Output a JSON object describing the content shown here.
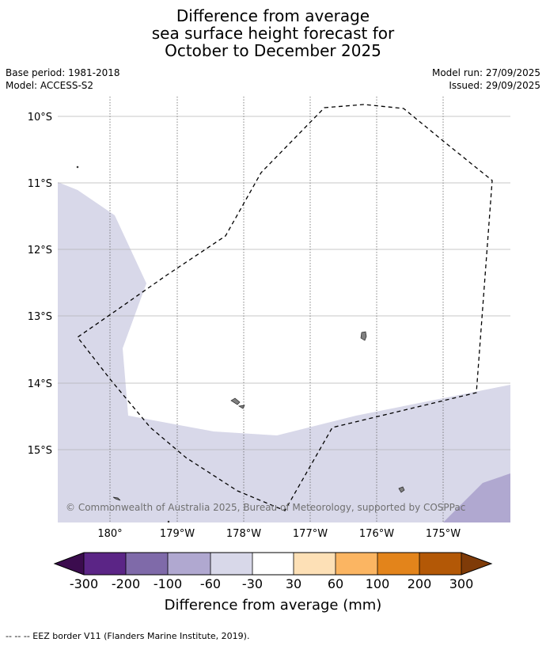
{
  "title": {
    "line1": "Difference from average",
    "line2": "sea surface height forecast for",
    "line3": "October to December 2025"
  },
  "meta": {
    "base_period": "Base period: 1981-2018",
    "model": "Model: ACCESS-S2",
    "model_run": "Model run: 27/09/2025",
    "issued": "Issued: 29/09/2025"
  },
  "map": {
    "lat_labels": [
      "10°S",
      "11°S",
      "12°S",
      "13°S",
      "14°S",
      "15°S"
    ],
    "lon_labels": [
      "180°",
      "179°W",
      "178°W",
      "177°W",
      "176°W",
      "175°W"
    ],
    "copyright": "© Commonwealth of Australia 2025, Bureau of Meteorology, supported by COSPPac"
  },
  "colorbar": {
    "title": "Difference from average (mm)",
    "tick_labels": [
      "-300",
      "-200",
      "-100",
      "-60",
      "-30",
      "30",
      "60",
      "100",
      "200",
      "300"
    ],
    "colors": {
      "below_min": "#3b0c4e",
      "c1": "#5b2586",
      "c2": "#7f6aa9",
      "c3": "#b0a8d0",
      "c4": "#d8d8e9",
      "c5": "#ffffff",
      "c6": "#fde0b6",
      "c7": "#fbb562",
      "c8": "#e3841b",
      "c9": "#b35806",
      "above_max": "#7f3b08"
    }
  },
  "footer": {
    "legend": "--  --  -- EEZ border V11 (Flanders Marine Institute, 2019)."
  }
}
